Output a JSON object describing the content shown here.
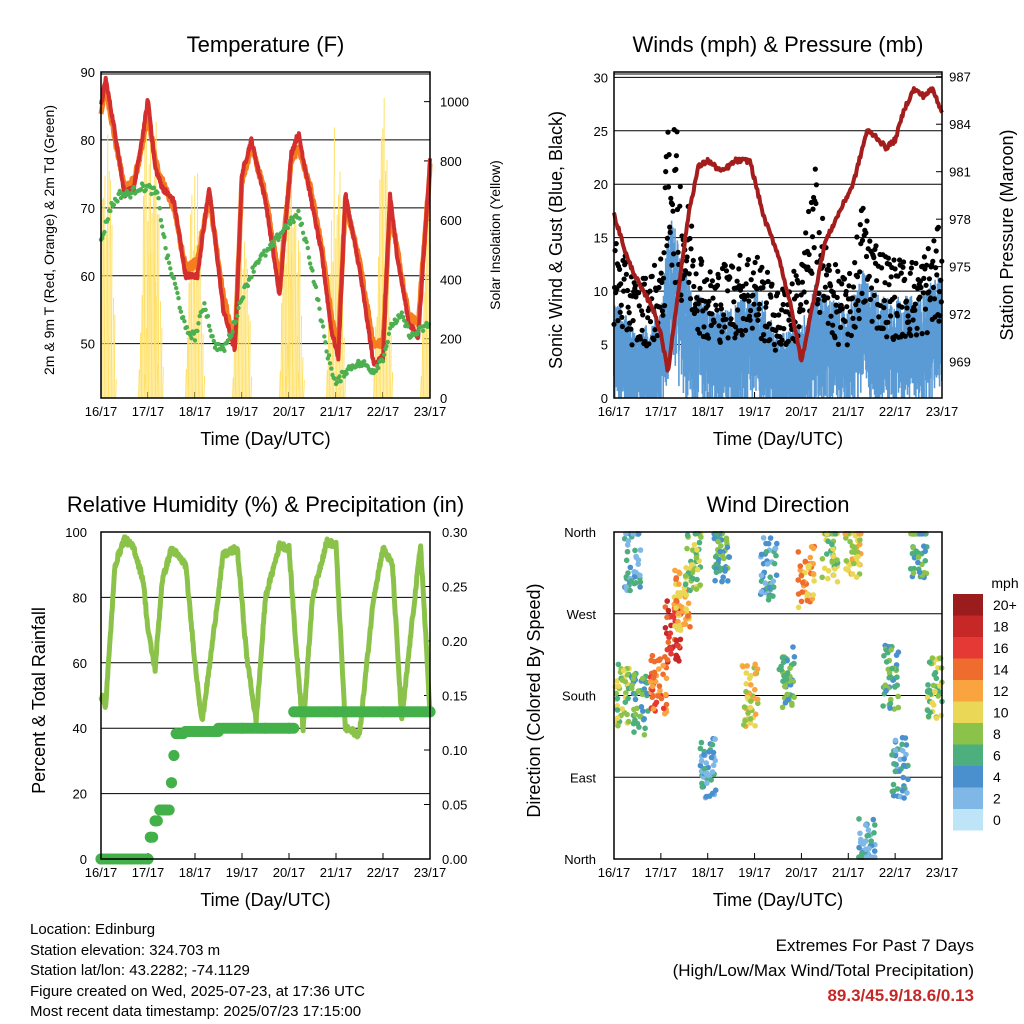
{
  "info": {
    "location": "Location: Edinburg",
    "elevation": "Station elevation: 324.703 m",
    "latlon": "Station lat/lon: 43.2282; -74.1129",
    "created": "Figure created on Wed, 2025-07-23, at 17:36 UTC",
    "recent": "Most recent data timestamp: 2025/07/23 17:15:00"
  },
  "extremes": {
    "title": "Extremes For Past 7 Days",
    "subtitle": "(High/Low/Max Wind/Total Precipitation)",
    "values": "89.3/45.9/18.6/0.13"
  },
  "colors": {
    "temp2m": "#d32f2f",
    "temp9m": "#f57c1f",
    "dewpoint": "#4caf50",
    "solar": "#ffe066",
    "sonic": "#5b9bd5",
    "gust": "#000000",
    "pressure": "#a31d1d",
    "rh": "#8bc34a",
    "precip": "#43b049"
  },
  "chart_data": [
    {
      "type": "line",
      "title": "Temperature (F)",
      "xlabel": "Time (Day/UTC)",
      "ylabel": "2m & 9m T (Red, Orange) & 2m Td (Green)",
      "y2label": "Solar Insolation (Yellow)",
      "x_ticks": [
        "16/17",
        "17/17",
        "18/17",
        "19/17",
        "20/17",
        "21/17",
        "22/17",
        "23/17"
      ],
      "ylim": [
        42,
        90
      ],
      "y_ticks": [
        50,
        60,
        70,
        80,
        90
      ],
      "y2lim": [
        0,
        1100
      ],
      "y2_ticks": [
        0,
        200,
        400,
        600,
        800,
        1000
      ],
      "grid": true,
      "series": [
        {
          "key": "temp2m",
          "axis": "left",
          "x": [
            0,
            0.1,
            0.3,
            0.5,
            0.7,
            0.85,
            1.0,
            1.15,
            1.3,
            1.55,
            1.8,
            2.05,
            2.3,
            2.6,
            2.85,
            3.0,
            3.2,
            3.5,
            3.8,
            4.05,
            4.2,
            4.45,
            4.7,
            4.9,
            5.05,
            5.2,
            5.5,
            5.8,
            6.0,
            6.15,
            6.3,
            6.55,
            6.75,
            7.0
          ],
          "y": [
            85,
            89,
            81,
            72,
            73,
            79,
            86,
            76,
            73,
            71,
            60,
            60,
            73,
            55,
            49,
            75,
            80,
            71,
            57,
            78,
            81,
            72,
            63,
            52,
            48,
            72,
            61,
            47,
            48,
            72,
            63,
            53,
            51,
            77
          ]
        },
        {
          "key": "temp9m",
          "axis": "left",
          "x": [
            0,
            0.1,
            0.3,
            0.5,
            0.7,
            0.85,
            1.0,
            1.15,
            1.3,
            1.55,
            1.8,
            2.05,
            2.3,
            2.6,
            2.85,
            3.0,
            3.2,
            3.5,
            3.8,
            4.05,
            4.2,
            4.45,
            4.7,
            4.9,
            5.05,
            5.2,
            5.5,
            5.8,
            6.0,
            6.15,
            6.3,
            6.55,
            6.75,
            7.0
          ],
          "y": [
            84,
            88,
            80,
            73,
            74,
            78,
            84,
            77,
            74,
            70,
            61,
            62,
            72,
            57,
            50,
            74,
            79,
            72,
            59,
            77,
            79,
            73,
            64,
            54,
            50,
            71,
            62,
            50,
            50,
            70,
            64,
            54,
            53,
            76
          ]
        },
        {
          "key": "dewpoint",
          "axis": "left",
          "x": [
            0,
            0.2,
            0.4,
            0.6,
            0.8,
            1.0,
            1.2,
            1.4,
            1.6,
            1.8,
            2.0,
            2.2,
            2.4,
            2.6,
            2.8,
            3.0,
            3.3,
            3.6,
            3.9,
            4.2,
            4.4,
            4.6,
            4.8,
            5.0,
            5.2,
            5.4,
            5.6,
            5.8,
            6.0,
            6.2,
            6.4,
            6.6,
            6.8,
            7.0
          ],
          "y": [
            65,
            70,
            72,
            72,
            73,
            73,
            72,
            63,
            58,
            52,
            51,
            56,
            50,
            49,
            52,
            57,
            62,
            64,
            67,
            69,
            64,
            57,
            49,
            44,
            46,
            47,
            47,
            46,
            48,
            53,
            54,
            51,
            52,
            53
          ]
        },
        {
          "key": "solar",
          "axis": "right",
          "peaks_x": [
            0.12,
            1.0,
            1.12,
            2.0,
            3.0,
            4.0,
            4.12,
            5.0,
            6.0,
            7.0
          ],
          "peaks_y": [
            950,
            1080,
            1000,
            950,
            870,
            1050,
            700,
            1000,
            1020,
            800
          ]
        }
      ]
    },
    {
      "type": "scatter",
      "title": "Winds (mph) & Pressure (mb)",
      "xlabel": "Time (Day/UTC)",
      "ylabel": "Sonic Wind & Gust (Blue, Black)",
      "y2label": "Station Pressure (Maroon)",
      "x_ticks": [
        "16/17",
        "17/17",
        "18/17",
        "19/17",
        "20/17",
        "21/17",
        "22/17",
        "23/17"
      ],
      "ylim": [
        0,
        30.5
      ],
      "y_ticks": [
        0,
        5,
        10,
        15,
        20,
        25,
        30
      ],
      "y2lim": [
        966.7,
        987.3
      ],
      "y2_ticks": [
        969,
        972,
        975,
        978,
        981,
        984,
        987
      ],
      "grid": true,
      "series": [
        {
          "key": "pressure",
          "axis": "right",
          "x": [
            0,
            0.3,
            0.6,
            0.8,
            1.0,
            1.15,
            1.35,
            1.6,
            1.8,
            2.0,
            2.3,
            2.6,
            2.9,
            3.2,
            3.5,
            3.75,
            4.0,
            4.2,
            4.5,
            4.8,
            5.1,
            5.4,
            5.6,
            5.8,
            6.0,
            6.2,
            6.4,
            6.6,
            6.8,
            7.0
          ],
          "y": [
            978.3,
            975.4,
            973.5,
            972.6,
            970.8,
            968.3,
            973.0,
            978.5,
            981.3,
            981.7,
            981.0,
            981.7,
            981.7,
            978.1,
            975.8,
            972.8,
            969.0,
            972.0,
            976.5,
            978.4,
            980.2,
            983.6,
            983.2,
            982.5,
            983.0,
            985.0,
            986.2,
            985.8,
            986.2,
            984.8
          ]
        },
        {
          "key": "gust",
          "axis": "left",
          "envelope_x": [
            0,
            0.5,
            1.0,
            1.2,
            1.5,
            2.0,
            2.5,
            3.0,
            3.5,
            4.0,
            4.3,
            4.6,
            5.0,
            5.3,
            5.7,
            6.0,
            6.5,
            7.0
          ],
          "envelope_y": [
            14,
            10,
            12,
            27,
            18,
            11,
            12,
            13,
            9,
            12,
            20,
            12,
            10,
            17,
            13,
            12,
            12,
            15
          ]
        },
        {
          "key": "sonic",
          "axis": "left",
          "envelope_x": [
            0,
            0.5,
            1.0,
            1.2,
            1.5,
            2.0,
            2.5,
            3.0,
            3.5,
            4.0,
            4.3,
            4.6,
            5.0,
            5.3,
            5.7,
            6.0,
            6.5,
            7.0
          ],
          "envelope_y": [
            8,
            5,
            7,
            15,
            10,
            7,
            7,
            9,
            5,
            6,
            9,
            8,
            7,
            10,
            8,
            8,
            8,
            10
          ]
        }
      ]
    },
    {
      "type": "line",
      "title": "Relative Humidity (%) & Precipitation (in)",
      "xlabel": "Time (Day/UTC)",
      "ylabel": "Percent & Total Rainfall",
      "x_ticks": [
        "16/17",
        "17/17",
        "18/17",
        "19/17",
        "20/17",
        "21/17",
        "22/17",
        "23/17"
      ],
      "ylim": [
        0,
        100
      ],
      "y_ticks": [
        0,
        20,
        40,
        60,
        80,
        100
      ],
      "y2lim": [
        0,
        0.3
      ],
      "y2_ticks": [
        "0.00",
        "0.05",
        "0.10",
        "0.15",
        "0.20",
        "0.25",
        "0.30"
      ],
      "grid": true,
      "series": [
        {
          "key": "rh",
          "axis": "left",
          "x": [
            0,
            0.1,
            0.3,
            0.5,
            0.7,
            0.9,
            1.0,
            1.15,
            1.3,
            1.5,
            1.8,
            2.0,
            2.15,
            2.3,
            2.6,
            2.9,
            3.1,
            3.3,
            3.5,
            3.8,
            4.0,
            4.15,
            4.3,
            4.5,
            4.8,
            5.0,
            5.2,
            5.5,
            5.8,
            6.0,
            6.2,
            6.4,
            6.6,
            6.8,
            7.0
          ],
          "y": [
            50,
            47,
            90,
            98,
            95,
            85,
            70,
            58,
            85,
            95,
            90,
            60,
            42,
            58,
            93,
            95,
            62,
            42,
            80,
            96,
            95,
            65,
            40,
            80,
            97,
            96,
            40,
            38,
            80,
            95,
            90,
            42,
            70,
            96,
            45
          ]
        },
        {
          "key": "precip",
          "axis": "right",
          "x": [
            0,
            0.5,
            1.0,
            1.05,
            1.15,
            1.25,
            1.4,
            1.5,
            1.55,
            1.6,
            1.8,
            2.5,
            3.0,
            3.5,
            4.0,
            4.1,
            5.0,
            6.0,
            7.0
          ],
          "y": [
            0.0,
            0.0,
            0.0,
            0.02,
            0.035,
            0.045,
            0.045,
            0.07,
            0.095,
            0.115,
            0.117,
            0.12,
            0.12,
            0.12,
            0.12,
            0.135,
            0.135,
            0.135,
            0.135
          ]
        }
      ]
    },
    {
      "type": "scatter",
      "title": "Wind Direction",
      "xlabel": "Time (Day/UTC)",
      "ylabel": "Direction (Colored By Speed)",
      "x_ticks": [
        "16/17",
        "17/17",
        "18/17",
        "19/17",
        "20/17",
        "21/17",
        "22/17",
        "23/17"
      ],
      "y_ticks": [
        "North",
        "East",
        "South",
        "West",
        "North"
      ],
      "ylim": [
        0,
        360
      ],
      "grid": true,
      "legend_title": "mph",
      "legend_labels": [
        "20+",
        "18",
        "16",
        "14",
        "12",
        "10",
        "8",
        "6",
        "4",
        "2",
        "0"
      ],
      "legend_colors": [
        "#9b1c1c",
        "#c62828",
        "#e53935",
        "#ef6c2f",
        "#f9a43f",
        "#ead755",
        "#8bc34a",
        "#4caf7d",
        "#4a8fce",
        "#7fb8e6",
        "#bde4f7"
      ],
      "clusters": [
        {
          "x": 0.15,
          "dir": 180,
          "speed": 8
        },
        {
          "x": 0.4,
          "dir": 330,
          "speed": 4
        },
        {
          "x": 0.55,
          "dir": 170,
          "speed": 6
        },
        {
          "x": 0.95,
          "dir": 190,
          "speed": 14
        },
        {
          "x": 1.25,
          "dir": 250,
          "speed": 16
        },
        {
          "x": 1.45,
          "dir": 285,
          "speed": 12
        },
        {
          "x": 1.7,
          "dir": 330,
          "speed": 8
        },
        {
          "x": 2.3,
          "dir": 340,
          "speed": 6
        },
        {
          "x": 2.0,
          "dir": 100,
          "speed": 4
        },
        {
          "x": 2.9,
          "dir": 180,
          "speed": 10
        },
        {
          "x": 3.3,
          "dir": 320,
          "speed": 4
        },
        {
          "x": 3.7,
          "dir": 200,
          "speed": 6
        },
        {
          "x": 4.1,
          "dir": 310,
          "speed": 12
        },
        {
          "x": 4.6,
          "dir": 340,
          "speed": 8
        },
        {
          "x": 5.1,
          "dir": 345,
          "speed": 10
        },
        {
          "x": 5.4,
          "dir": 10,
          "speed": 4
        },
        {
          "x": 5.9,
          "dir": 200,
          "speed": 6
        },
        {
          "x": 6.1,
          "dir": 100,
          "speed": 4
        },
        {
          "x": 6.5,
          "dir": 345,
          "speed": 6
        },
        {
          "x": 6.85,
          "dir": 190,
          "speed": 8
        }
      ]
    }
  ]
}
